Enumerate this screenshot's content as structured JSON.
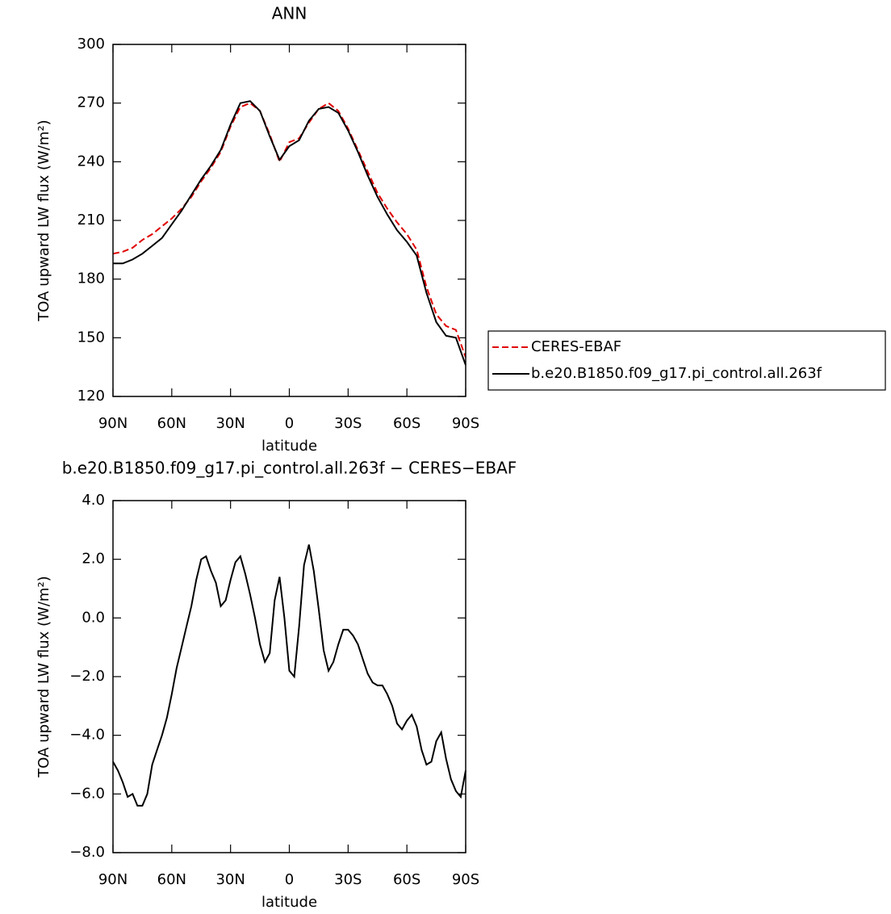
{
  "chart_data": [
    {
      "type": "line",
      "title": "ANN",
      "xlabel": "latitude",
      "ylabel": "TOA upward LW flux (W/m²)",
      "x": [
        90,
        85,
        80,
        75,
        70,
        65,
        60,
        55,
        50,
        45,
        40,
        35,
        30,
        25,
        20,
        15,
        10,
        5,
        0,
        -5,
        -10,
        -15,
        -20,
        -25,
        -30,
        -35,
        -40,
        -45,
        -50,
        -55,
        -60,
        -65,
        -70,
        -75,
        -80,
        -85,
        -90
      ],
      "series": [
        {
          "name": "CERES-EBAF",
          "color": "#e00000",
          "line_style": "dashed",
          "values": [
            193,
            194,
            196,
            200,
            203,
            207,
            211,
            216,
            222,
            230,
            237,
            245,
            258,
            268,
            270,
            266,
            254,
            240,
            250,
            252,
            260,
            267,
            270,
            266,
            257,
            246,
            235,
            224,
            216,
            209,
            203,
            195,
            176,
            162,
            156,
            154,
            140
          ]
        },
        {
          "name": "b.e20.B1850.f09_g17.pi_control.all.263f",
          "color": "#000000",
          "line_style": "solid",
          "values": [
            188,
            188,
            190,
            193,
            197,
            201,
            208,
            215,
            223,
            231,
            238,
            246,
            259,
            270,
            271,
            266,
            253,
            241,
            248,
            251,
            261,
            267,
            268,
            265,
            256,
            245,
            233,
            222,
            213,
            205,
            199,
            192,
            173,
            158,
            151,
            150,
            136
          ]
        }
      ],
      "xlim": [
        90,
        -90
      ],
      "xticks": [
        {
          "value": 90,
          "label": "90N"
        },
        {
          "value": 60,
          "label": "60N"
        },
        {
          "value": 30,
          "label": "30N"
        },
        0,
        {
          "value": -30,
          "label": "30S"
        },
        {
          "value": -60,
          "label": "60S"
        },
        {
          "value": -90,
          "label": "90S"
        }
      ],
      "ylim": [
        120,
        300
      ],
      "yticks": [
        120,
        150,
        180,
        210,
        240,
        270,
        300
      ],
      "legend": "outside-right"
    },
    {
      "type": "line",
      "title": "b.e20.B1850.f09_g17.pi_control.all.263f − CERES−EBAF",
      "xlabel": "latitude",
      "ylabel": "TOA upward LW flux (W/m²)",
      "x": [
        90,
        87.5,
        85,
        82.5,
        80,
        77.5,
        75,
        72.5,
        70,
        67.5,
        65,
        62.5,
        60,
        57.5,
        55,
        52.5,
        50,
        47.5,
        45,
        42.5,
        40,
        37.5,
        35,
        32.5,
        30,
        27.5,
        25,
        22.5,
        20,
        17.5,
        15,
        12.5,
        10,
        7.5,
        5,
        2.5,
        0,
        -2.5,
        -5,
        -7.5,
        -10,
        -12.5,
        -15,
        -17.5,
        -20,
        -22.5,
        -25,
        -27.5,
        -30,
        -32.5,
        -35,
        -37.5,
        -40,
        -42.5,
        -45,
        -47.5,
        -50,
        -52.5,
        -55,
        -57.5,
        -60,
        -62.5,
        -65,
        -67.5,
        -70,
        -72.5,
        -75,
        -77.5,
        -80,
        -82.5,
        -85,
        -87.5,
        -90
      ],
      "color": "#000000",
      "values": [
        -4.9,
        -5.2,
        -5.6,
        -6.1,
        -6.0,
        -6.4,
        -6.4,
        -6.0,
        -5.0,
        -4.5,
        -4.0,
        -3.4,
        -2.6,
        -1.7,
        -1.0,
        -0.3,
        0.4,
        1.3,
        2.0,
        2.1,
        1.6,
        1.2,
        0.4,
        0.6,
        1.3,
        1.9,
        2.1,
        1.5,
        0.8,
        0.0,
        -0.9,
        -1.5,
        -1.2,
        0.6,
        1.4,
        0.0,
        -1.8,
        -2.0,
        -0.3,
        1.8,
        2.5,
        1.6,
        0.3,
        -1.1,
        -1.8,
        -1.5,
        -0.9,
        -0.4,
        -0.4,
        -0.6,
        -0.9,
        -1.4,
        -1.9,
        -2.2,
        -2.3,
        -2.3,
        -2.6,
        -3.0,
        -3.6,
        -3.8,
        -3.5,
        -3.3,
        -3.7,
        -4.5,
        -5.0,
        -4.9,
        -4.2,
        -3.9,
        -4.8,
        -5.5,
        -5.9,
        -6.1,
        -5.2
      ],
      "xlim": [
        90,
        -90
      ],
      "xticks": [
        {
          "value": 90,
          "label": "90N"
        },
        {
          "value": 60,
          "label": "60N"
        },
        {
          "value": 30,
          "label": "30N"
        },
        0,
        {
          "value": -30,
          "label": "30S"
        },
        {
          "value": -60,
          "label": "60S"
        },
        {
          "value": -90,
          "label": "90S"
        }
      ],
      "ylim": [
        -8,
        4
      ],
      "yticks": [
        {
          "value": -8,
          "label": "−8.0"
        },
        {
          "value": -6,
          "label": "−6.0"
        },
        {
          "value": -4,
          "label": "−4.0"
        },
        {
          "value": -2,
          "label": "−2.0"
        },
        {
          "value": 0,
          "label": "0.0"
        },
        {
          "value": 2,
          "label": "2.0"
        },
        {
          "value": 4,
          "label": "4.0"
        }
      ]
    }
  ]
}
